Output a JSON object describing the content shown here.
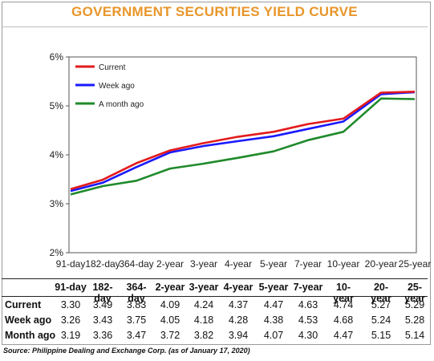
{
  "title": "GOVERNMENT SECURITIES YIELD CURVE",
  "source": "Source: Philippine Dealing and Exchange Corp. (as of January 17, 2020)",
  "colors": {
    "current": "#e31a1c",
    "week_ago": "#1a1aff",
    "month_ago": "#1f8a2a",
    "title": "#e8962a"
  },
  "chart_data": {
    "type": "line",
    "title": "GOVERNMENT SECURITIES YIELD CURVE",
    "categories": [
      "91-day",
      "182-day",
      "364-day",
      "2-year",
      "3-year",
      "4-year",
      "5-year",
      "7-year",
      "10-year",
      "20-year",
      "25-year"
    ],
    "series": [
      {
        "name": "Current",
        "values": [
          3.3,
          3.49,
          3.83,
          4.09,
          4.24,
          4.37,
          4.47,
          4.63,
          4.74,
          5.27,
          5.29
        ]
      },
      {
        "name": "Week ago",
        "values": [
          3.26,
          3.43,
          3.75,
          4.05,
          4.18,
          4.28,
          4.38,
          4.53,
          4.68,
          5.24,
          5.28
        ]
      },
      {
        "name": "A month ago",
        "values": [
          3.19,
          3.36,
          3.47,
          3.72,
          3.82,
          3.94,
          4.07,
          4.3,
          4.47,
          5.15,
          5.14
        ]
      }
    ],
    "yticks": [
      "2%",
      "3%",
      "4%",
      "5%",
      "6%"
    ],
    "ylim": [
      2,
      6
    ],
    "grid": false,
    "legend": "top-left"
  },
  "table": {
    "headers": [
      "91-day",
      "182-day",
      "364-day",
      "2-year",
      "3-year",
      "4-year",
      "5-year",
      "7-year",
      "10-year",
      "20-year",
      "25-year"
    ],
    "rows": [
      {
        "label": "Current",
        "values": [
          "3.30",
          "3.49",
          "3.83",
          "4.09",
          "4.24",
          "4.37",
          "4.47",
          "4.63",
          "4.74",
          "5.27",
          "5.29"
        ]
      },
      {
        "label": "Week ago",
        "values": [
          "3.26",
          "3.43",
          "3.75",
          "4.05",
          "4.18",
          "4.28",
          "4.38",
          "4.53",
          "4.68",
          "5.24",
          "5.28"
        ]
      },
      {
        "label": "Month ago",
        "values": [
          "3.19",
          "3.36",
          "3.47",
          "3.72",
          "3.82",
          "3.94",
          "4.07",
          "4.30",
          "4.47",
          "5.15",
          "5.14"
        ]
      }
    ]
  }
}
